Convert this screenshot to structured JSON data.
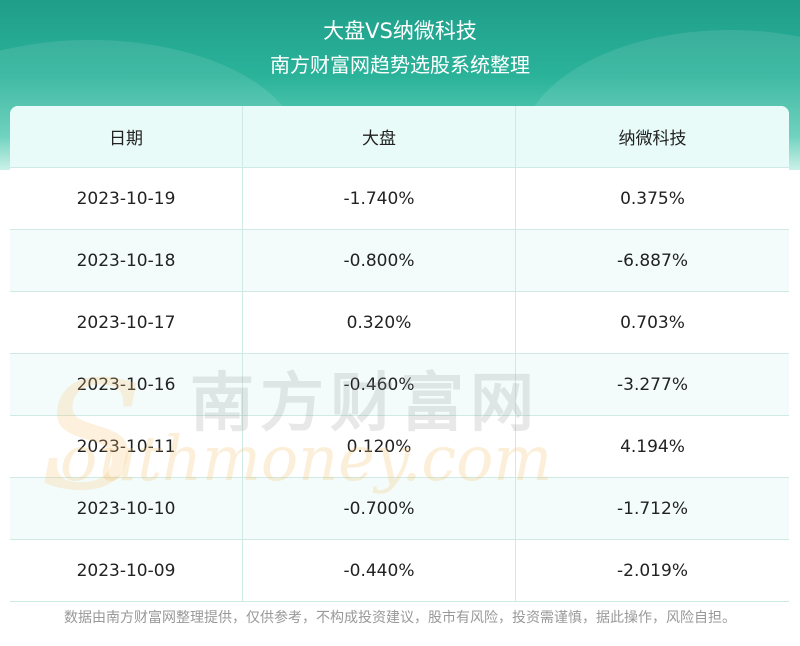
{
  "header": {
    "title": "大盘VS纳微科技",
    "subtitle": "南方财富网趋势选股系统整理"
  },
  "table": {
    "columns": [
      "日期",
      "大盘",
      "纳微科技"
    ],
    "rows": [
      [
        "2023-10-19",
        "-1.740%",
        "0.375%"
      ],
      [
        "2023-10-18",
        "-0.800%",
        "-6.887%"
      ],
      [
        "2023-10-17",
        "0.320%",
        "0.703%"
      ],
      [
        "2023-10-16",
        "-0.460%",
        "-3.277%"
      ],
      [
        "2023-10-11",
        "0.120%",
        "4.194%"
      ],
      [
        "2023-10-10",
        "-0.700%",
        "-1.712%"
      ],
      [
        "2023-10-09",
        "-0.440%",
        "-2.019%"
      ]
    ]
  },
  "watermark": {
    "cn": "南方财富网",
    "en": "outhmoney.com",
    "s": "S"
  },
  "footer": {
    "disclaimer": "数据由南方财富网整理提供，仅供参考，不构成投资建议，股市有风险，投资需谨慎，据此操作，风险自担。"
  },
  "colors": {
    "header_teal": "#2bb39a",
    "header_row_bg": "#e8fbf8",
    "border": "#cfe9e4"
  }
}
